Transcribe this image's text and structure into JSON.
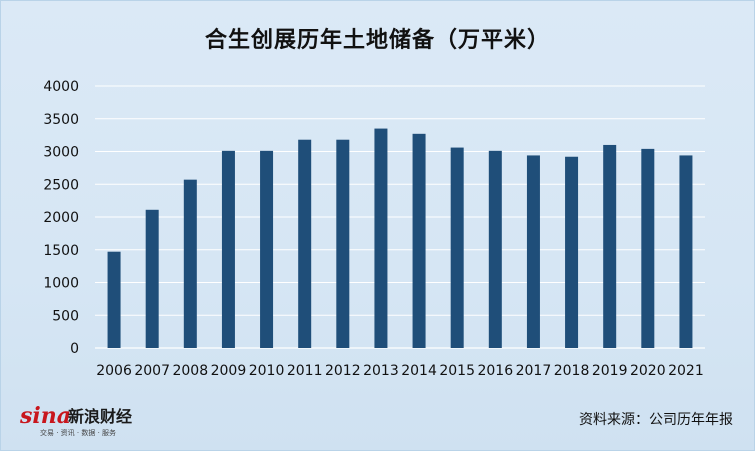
{
  "chart_data": {
    "type": "bar",
    "title": "合生创展历年土地储备（万平米）",
    "categories": [
      "2006",
      "2007",
      "2008",
      "2009",
      "2010",
      "2011",
      "2012",
      "2013",
      "2014",
      "2015",
      "2016",
      "2017",
      "2018",
      "2019",
      "2020",
      "2021"
    ],
    "series": [
      {
        "values": [
          1470,
          2110,
          2570,
          3010,
          3010,
          3180,
          3180,
          3350,
          3270,
          3060,
          3010,
          2940,
          2920,
          3100,
          3040,
          2940
        ]
      }
    ],
    "ylim": [
      0,
      4000
    ],
    "yticks": [
      0,
      500,
      1000,
      1500,
      2000,
      2500,
      3000,
      3500,
      4000
    ],
    "grid": true,
    "bar_color": "#1f4e79",
    "xlabel": "",
    "ylabel": ""
  },
  "source_text": "资料来源：公司历年年报",
  "logo": {
    "mark": "sina",
    "name": "新浪财经",
    "tagline": "交易 · 资讯 · 数据 · 服务"
  },
  "colors": {
    "background": "#d6e6f4",
    "gridline": "#ffffff",
    "bar": "#1f4e79"
  }
}
